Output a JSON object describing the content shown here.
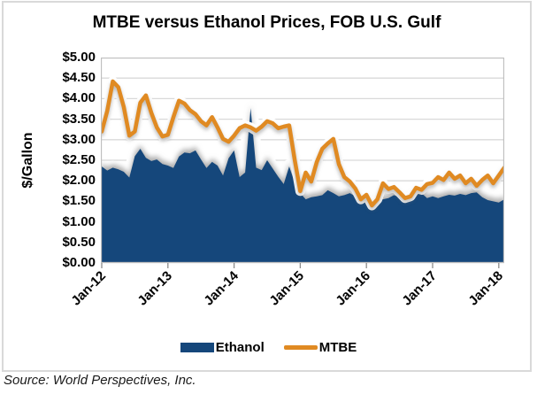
{
  "title": "MTBE versus Ethanol Prices, FOB U.S. Gulf",
  "source": "Source: World Perspectives, Inc.",
  "y_axis": {
    "title": "$/Gallon",
    "tick_labels": [
      "$5.00",
      "$4.50",
      "$4.00",
      "$3.50",
      "$3.00",
      "$2.50",
      "$2.00",
      "$1.50",
      "$1.00",
      "$0.50",
      "$0.00"
    ]
  },
  "x_axis": {
    "tick_labels": [
      "Jan-12",
      "Jan-13",
      "Jan-14",
      "Jan-15",
      "Jan-16",
      "Jan-17",
      "Jan-18"
    ]
  },
  "legend": [
    {
      "label": "Ethanol",
      "type": "area",
      "color": "#15477B"
    },
    {
      "label": "MTBE",
      "type": "line",
      "color": "#E08A22"
    }
  ],
  "colors": {
    "ethanol": "#15477B",
    "mtbe": "#E08A22",
    "gridline": "#D9D9D9",
    "plot_border": "#BFBFBF",
    "frame_border": "#D9D9D9"
  },
  "chart_data": {
    "type": "area",
    "title": "MTBE versus Ethanol Prices, FOB U.S. Gulf",
    "ylabel": "$/Gallon",
    "ylim": [
      0,
      5
    ],
    "ytick_step": 0.5,
    "grid": "horizontal",
    "legend_position": "bottom",
    "xticks": [
      "Jan-12",
      "Jan-13",
      "Jan-14",
      "Jan-15",
      "Jan-16",
      "Jan-17",
      "Jan-18"
    ],
    "x": [
      "Jan-12",
      "Feb-12",
      "Mar-12",
      "Apr-12",
      "May-12",
      "Jun-12",
      "Jul-12",
      "Aug-12",
      "Sep-12",
      "Oct-12",
      "Nov-12",
      "Dec-12",
      "Jan-13",
      "Feb-13",
      "Mar-13",
      "Apr-13",
      "May-13",
      "Jun-13",
      "Jul-13",
      "Aug-13",
      "Sep-13",
      "Oct-13",
      "Nov-13",
      "Dec-13",
      "Jan-14",
      "Feb-14",
      "Mar-14",
      "Apr-14",
      "May-14",
      "Jun-14",
      "Jul-14",
      "Aug-14",
      "Sep-14",
      "Oct-14",
      "Nov-14",
      "Dec-14",
      "Jan-15",
      "Feb-15",
      "Mar-15",
      "Apr-15",
      "May-15",
      "Jun-15",
      "Jul-15",
      "Aug-15",
      "Sep-15",
      "Oct-15",
      "Nov-15",
      "Dec-15",
      "Jan-16",
      "Feb-16",
      "Mar-16",
      "Apr-16",
      "May-16",
      "Jun-16",
      "Jul-16",
      "Aug-16",
      "Sep-16",
      "Oct-16",
      "Nov-16",
      "Dec-16",
      "Jan-17",
      "Feb-17",
      "Mar-17",
      "Apr-17",
      "May-17",
      "Jun-17",
      "Jul-17",
      "Aug-17",
      "Sep-17",
      "Oct-17",
      "Nov-17",
      "Dec-17",
      "Jan-18",
      "Feb-18"
    ],
    "series": [
      {
        "name": "Ethanol",
        "type": "area",
        "color": "#15477B",
        "values": [
          2.35,
          2.25,
          2.32,
          2.28,
          2.22,
          2.08,
          2.6,
          2.78,
          2.56,
          2.48,
          2.52,
          2.41,
          2.37,
          2.31,
          2.59,
          2.69,
          2.67,
          2.74,
          2.52,
          2.31,
          2.46,
          2.37,
          2.13,
          2.55,
          2.74,
          2.09,
          2.2,
          3.77,
          2.32,
          2.26,
          2.5,
          2.3,
          2.1,
          1.92,
          2.35,
          1.95,
          1.7,
          1.55,
          1.6,
          1.62,
          1.65,
          1.77,
          1.7,
          1.62,
          1.65,
          1.7,
          1.62,
          1.53,
          1.48,
          1.44,
          1.5,
          1.55,
          1.58,
          1.65,
          1.6,
          1.52,
          1.57,
          1.66,
          1.7,
          1.58,
          1.62,
          1.58,
          1.62,
          1.66,
          1.64,
          1.68,
          1.65,
          1.7,
          1.72,
          1.6,
          1.53,
          1.5,
          1.47,
          1.55
        ]
      },
      {
        "name": "MTBE",
        "type": "line",
        "color": "#E08A22",
        "values": [
          3.2,
          3.7,
          4.42,
          4.28,
          3.8,
          3.1,
          3.2,
          3.9,
          4.08,
          3.65,
          3.3,
          3.08,
          3.12,
          3.55,
          3.95,
          3.88,
          3.72,
          3.62,
          3.45,
          3.35,
          3.55,
          3.3,
          3.02,
          2.95,
          3.1,
          3.28,
          3.35,
          3.3,
          3.22,
          3.32,
          3.45,
          3.4,
          3.28,
          3.32,
          3.35,
          2.5,
          1.75,
          2.2,
          1.98,
          2.46,
          2.78,
          2.91,
          3.02,
          2.41,
          2.09,
          1.98,
          1.81,
          1.55,
          1.66,
          1.4,
          1.55,
          1.94,
          1.8,
          1.85,
          1.72,
          1.58,
          1.62,
          1.83,
          1.78,
          1.92,
          1.95,
          2.09,
          2.02,
          2.2,
          2.05,
          2.13,
          1.94,
          2.05,
          1.88,
          2.02,
          2.13,
          1.94,
          2.13,
          2.32
        ]
      }
    ]
  }
}
